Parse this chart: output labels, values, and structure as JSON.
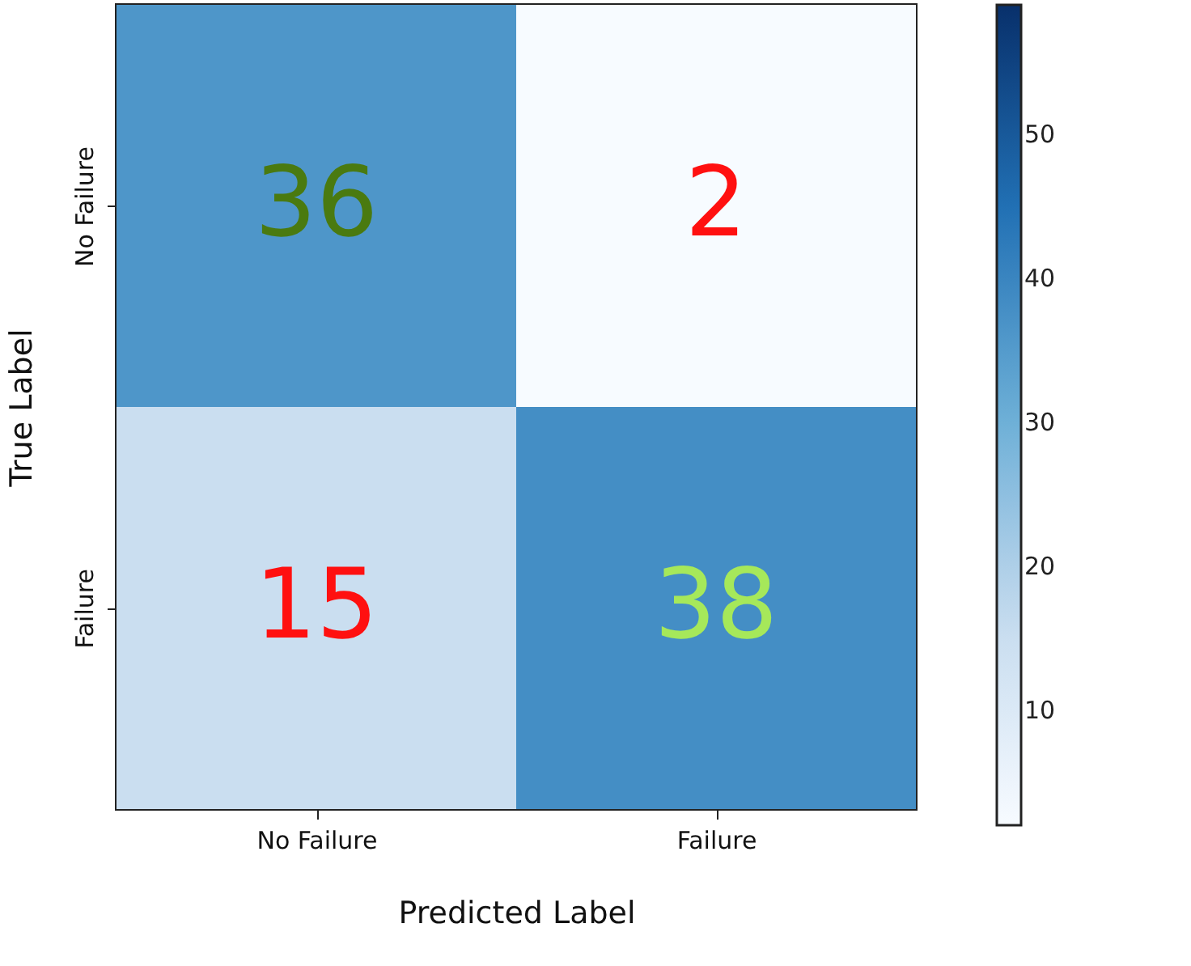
{
  "chart_data": {
    "type": "heatmap",
    "xlabel": "Predicted Label",
    "ylabel": "True Label",
    "categories": [
      "No Failure",
      "Failure"
    ],
    "y_categories": [
      "No Failure",
      "Failure"
    ],
    "cells": [
      [
        36,
        2
      ],
      [
        15,
        38
      ]
    ],
    "data_labels": true,
    "clim": [
      2,
      59
    ],
    "cticks": [
      10,
      20,
      30,
      40,
      50
    ]
  }
}
